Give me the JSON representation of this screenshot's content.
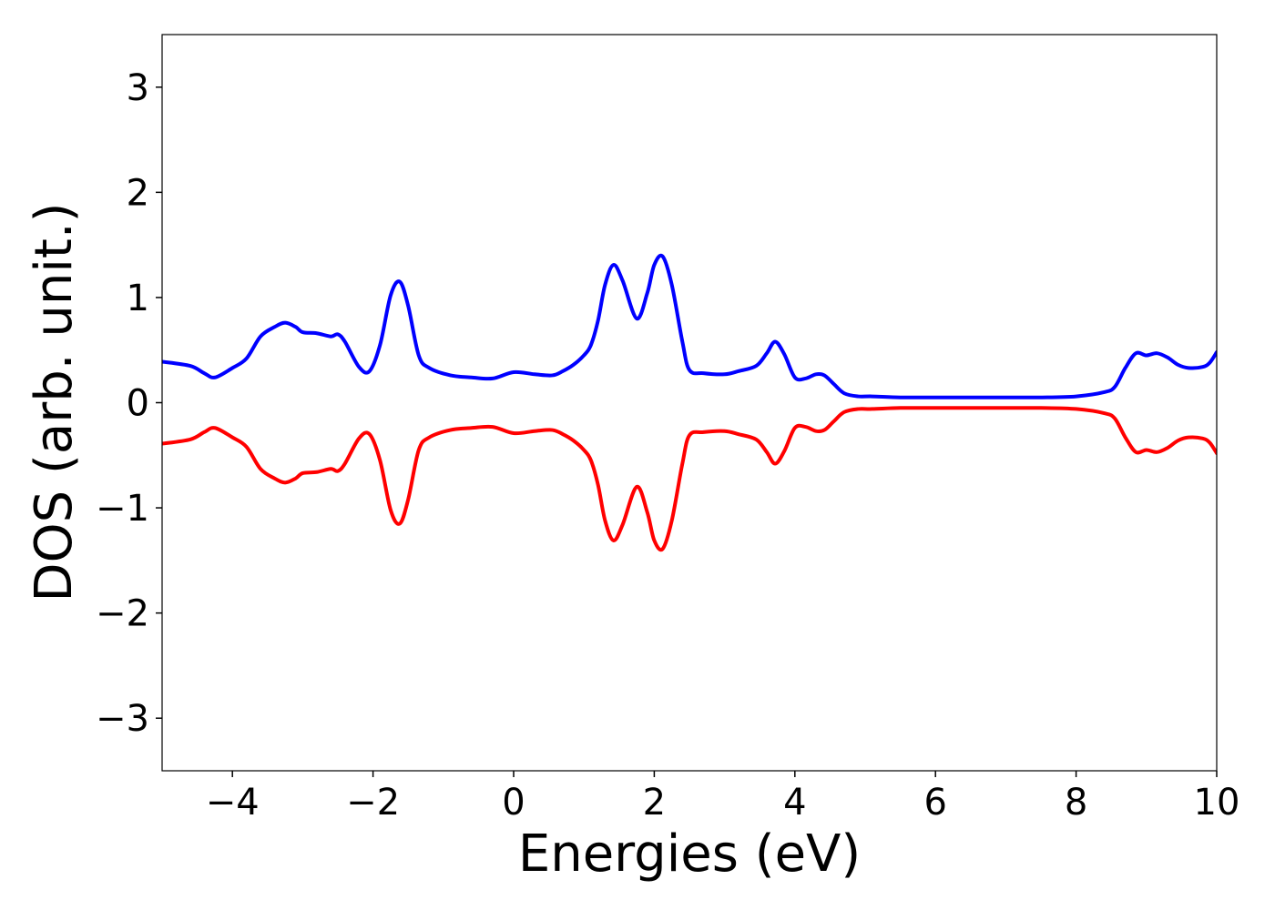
{
  "chart_data": {
    "type": "line",
    "title": "",
    "xlabel": "Energies (eV)",
    "ylabel": "DOS (arb. unit.)",
    "xlim": [
      -5,
      10
    ],
    "ylim": [
      -3.5,
      3.5
    ],
    "x_ticks": [
      -4,
      -2,
      0,
      2,
      4,
      6,
      8,
      10
    ],
    "y_ticks": [
      -3,
      -2,
      -1,
      0,
      1,
      2,
      3
    ],
    "x_tick_labels": [
      "−4",
      "−2",
      "0",
      "2",
      "4",
      "6",
      "8",
      "10"
    ],
    "y_tick_labels": [
      "−3",
      "−2",
      "−1",
      "0",
      "1",
      "2",
      "3"
    ],
    "grid": false,
    "legend": "none",
    "x": [
      -5.0,
      -4.6,
      -4.4,
      -4.25,
      -4.0,
      -3.8,
      -3.6,
      -3.4,
      -3.25,
      -3.1,
      -3.0,
      -2.8,
      -2.6,
      -2.5,
      -2.4,
      -2.2,
      -2.05,
      -1.9,
      -1.75,
      -1.62,
      -1.5,
      -1.35,
      -1.2,
      -0.9,
      -0.6,
      -0.3,
      0.0,
      0.3,
      0.55,
      0.7,
      0.85,
      1.0,
      1.1,
      1.2,
      1.3,
      1.42,
      1.55,
      1.75,
      1.9,
      2.0,
      2.12,
      2.25,
      2.4,
      2.5,
      2.7,
      3.0,
      3.2,
      3.45,
      3.6,
      3.72,
      3.85,
      4.0,
      4.15,
      4.3,
      4.42,
      4.55,
      4.7,
      4.9,
      5.1,
      5.5,
      6.0,
      6.3,
      6.6,
      7.0,
      7.5,
      8.0,
      8.4,
      8.55,
      8.7,
      8.85,
      9.0,
      9.15,
      9.3,
      9.45,
      9.6,
      9.8,
      9.9,
      10.0
    ],
    "series": [
      {
        "color": "#0000ff",
        "values": [
          0.39,
          0.35,
          0.28,
          0.24,
          0.33,
          0.42,
          0.63,
          0.72,
          0.76,
          0.72,
          0.67,
          0.66,
          0.63,
          0.65,
          0.58,
          0.34,
          0.3,
          0.55,
          1.02,
          1.15,
          0.92,
          0.45,
          0.33,
          0.26,
          0.24,
          0.23,
          0.29,
          0.27,
          0.26,
          0.3,
          0.36,
          0.45,
          0.55,
          0.78,
          1.12,
          1.31,
          1.16,
          0.8,
          1.04,
          1.31,
          1.39,
          1.12,
          0.58,
          0.31,
          0.28,
          0.27,
          0.3,
          0.35,
          0.47,
          0.58,
          0.46,
          0.24,
          0.23,
          0.27,
          0.26,
          0.18,
          0.09,
          0.06,
          0.06,
          0.05,
          0.05,
          0.05,
          0.05,
          0.05,
          0.05,
          0.06,
          0.1,
          0.15,
          0.33,
          0.47,
          0.45,
          0.47,
          0.43,
          0.36,
          0.33,
          0.34,
          0.38,
          0.48
        ]
      },
      {
        "color": "#ff0000",
        "values": [
          -0.39,
          -0.35,
          -0.28,
          -0.24,
          -0.33,
          -0.42,
          -0.63,
          -0.72,
          -0.76,
          -0.72,
          -0.67,
          -0.66,
          -0.63,
          -0.65,
          -0.58,
          -0.34,
          -0.3,
          -0.55,
          -1.02,
          -1.15,
          -0.92,
          -0.45,
          -0.33,
          -0.26,
          -0.24,
          -0.23,
          -0.29,
          -0.27,
          -0.26,
          -0.3,
          -0.36,
          -0.45,
          -0.55,
          -0.78,
          -1.12,
          -1.31,
          -1.16,
          -0.8,
          -1.04,
          -1.31,
          -1.39,
          -1.12,
          -0.58,
          -0.31,
          -0.28,
          -0.27,
          -0.3,
          -0.35,
          -0.47,
          -0.58,
          -0.46,
          -0.24,
          -0.23,
          -0.27,
          -0.26,
          -0.18,
          -0.09,
          -0.06,
          -0.06,
          -0.05,
          -0.05,
          -0.05,
          -0.05,
          -0.05,
          -0.05,
          -0.06,
          -0.1,
          -0.15,
          -0.33,
          -0.47,
          -0.45,
          -0.47,
          -0.43,
          -0.36,
          -0.33,
          -0.34,
          -0.38,
          -0.48
        ]
      }
    ]
  }
}
